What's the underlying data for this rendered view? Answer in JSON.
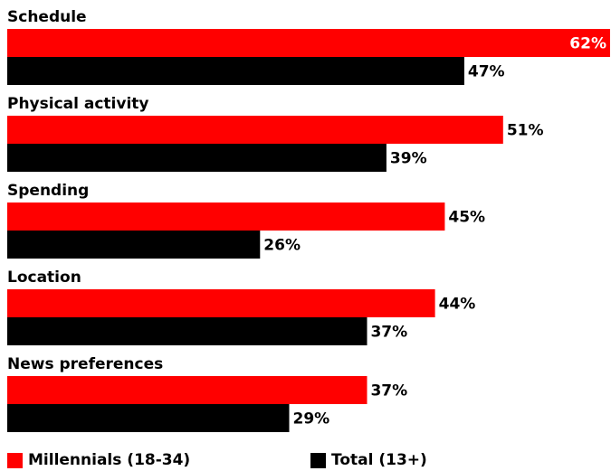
{
  "chart_data": {
    "type": "bar",
    "orientation": "horizontal",
    "categories": [
      "Schedule",
      "Physical activity",
      "Spending",
      "Location",
      "News preferences"
    ],
    "series": [
      {
        "name": "Millennials (18-34)",
        "color": "#ff0000",
        "values": [
          62,
          51,
          45,
          44,
          37
        ]
      },
      {
        "name": "Total (13+)",
        "color": "#000000",
        "values": [
          47,
          39,
          26,
          37,
          29
        ]
      }
    ],
    "value_suffix": "%",
    "xlim": [
      0,
      62
    ],
    "grid": false,
    "legend_position": "bottom"
  }
}
